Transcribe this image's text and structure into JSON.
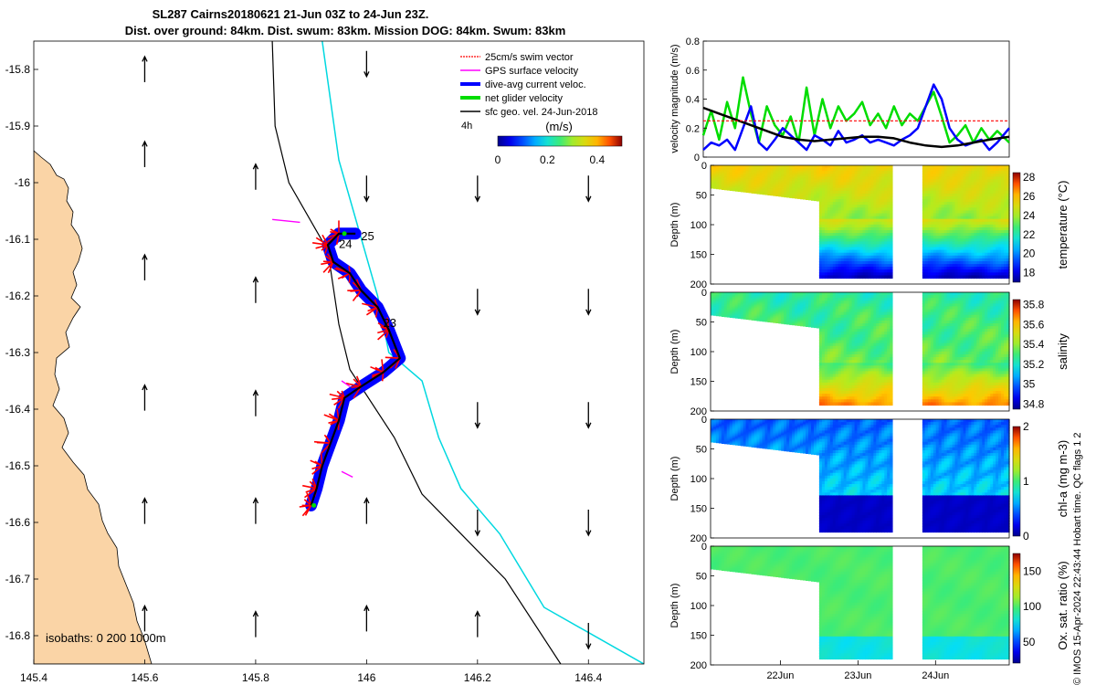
{
  "title": {
    "line1": "SL287 Cairns20180621 21-Jun 03Z to 24-Jun 23Z.",
    "line2": "Dist. over ground: 84km. Dist. swum: 83km. Mission DOG: 84km. Swum: 83km"
  },
  "credit": "© IMOS 15-Apr-2024 22:43:44 Hobart time. QC flags 1  2",
  "colors": {
    "land": "#fad4a6",
    "swim_vector": "#ff0000",
    "gps_velocity": "#ff00ff",
    "dive_avg": "#0000ff",
    "net_velocity": "#00dd00",
    "sfc_geo": "#000000",
    "isobath_200": "#000000",
    "isobath_1000": "#00d8e0"
  },
  "chart_data": [
    {
      "type": "map",
      "xlim": [
        145.4,
        146.5
      ],
      "ylim": [
        -16.85,
        -15.75
      ],
      "xticks": [
        145.4,
        145.6,
        145.8,
        146,
        146.2,
        146.4
      ],
      "xtick_labels": [
        "145.4",
        "145.6",
        "145.8",
        "146",
        "146.2",
        "146.4"
      ],
      "yticks": [
        -15.8,
        -15.9,
        -16,
        -16.1,
        -16.2,
        -16.3,
        -16.4,
        -16.5,
        -16.6,
        -16.7,
        -16.8
      ],
      "ytick_labels": [
        "-15.8",
        "-15.9",
        "-16",
        "-16.1",
        "-16.2",
        "-16.3",
        "-16.4",
        "-16.5",
        "-16.6",
        "-16.7",
        "-16.8"
      ],
      "legend": [
        "25cm/s swim vector",
        "GPS surface velocity",
        "dive-avg current veloc.",
        "net glider velocity",
        "sfc geo. vel. 24-Jun-2018"
      ],
      "legend_scale_label": "4h",
      "colorbar": {
        "label": "(m/s)",
        "ticks": [
          "0",
          "0.2",
          "0.4"
        ],
        "range": [
          0,
          0.5
        ]
      },
      "isobath_label": "isobaths: 0   200  1000m",
      "day_labels": [
        {
          "text": "24",
          "lon": 145.95,
          "lat": -16.115
        },
        {
          "text": "25",
          "lon": 145.99,
          "lat": -16.102
        },
        {
          "text": "23",
          "lon": 146.03,
          "lat": -16.255
        }
      ],
      "track": [
        {
          "lon": 145.9,
          "lat": -16.57
        },
        {
          "lon": 145.91,
          "lat": -16.54
        },
        {
          "lon": 145.92,
          "lat": -16.5
        },
        {
          "lon": 145.935,
          "lat": -16.46
        },
        {
          "lon": 145.95,
          "lat": -16.42
        },
        {
          "lon": 145.96,
          "lat": -16.38
        },
        {
          "lon": 145.99,
          "lat": -16.36
        },
        {
          "lon": 146.03,
          "lat": -16.335
        },
        {
          "lon": 146.06,
          "lat": -16.31
        },
        {
          "lon": 146.04,
          "lat": -16.26
        },
        {
          "lon": 146.02,
          "lat": -16.22
        },
        {
          "lon": 145.99,
          "lat": -16.19
        },
        {
          "lon": 145.97,
          "lat": -16.16
        },
        {
          "lon": 145.94,
          "lat": -16.14
        },
        {
          "lon": 145.93,
          "lat": -16.11
        },
        {
          "lon": 145.95,
          "lat": -16.09
        },
        {
          "lon": 145.98,
          "lat": -16.09
        }
      ],
      "sfc_geo_arrows": [
        {
          "lon": 145.6,
          "lat": -15.8,
          "u": 0,
          "v": 1
        },
        {
          "lon": 145.6,
          "lat": -15.95,
          "u": 0,
          "v": 1
        },
        {
          "lon": 145.6,
          "lat": -16.15,
          "u": 0,
          "v": 1
        },
        {
          "lon": 145.6,
          "lat": -16.38,
          "u": 0,
          "v": 1
        },
        {
          "lon": 145.6,
          "lat": -16.58,
          "u": 0,
          "v": 1
        },
        {
          "lon": 145.6,
          "lat": -16.77,
          "u": 0,
          "v": 1
        },
        {
          "lon": 145.8,
          "lat": -15.99,
          "u": 0,
          "v": 1
        },
        {
          "lon": 145.8,
          "lat": -16.19,
          "u": 0,
          "v": 1
        },
        {
          "lon": 145.8,
          "lat": -16.39,
          "u": 0,
          "v": 1
        },
        {
          "lon": 145.8,
          "lat": -16.58,
          "u": 0,
          "v": 1
        },
        {
          "lon": 145.8,
          "lat": -16.78,
          "u": 0,
          "v": 1
        },
        {
          "lon": 146.0,
          "lat": -15.79,
          "u": 0,
          "v": -1
        },
        {
          "lon": 146.0,
          "lat": -16.01,
          "u": 0,
          "v": -1
        },
        {
          "lon": 146.0,
          "lat": -16.58,
          "u": 0,
          "v": 1
        },
        {
          "lon": 146.0,
          "lat": -16.77,
          "u": 0,
          "v": 1
        },
        {
          "lon": 146.2,
          "lat": -16.01,
          "u": 0,
          "v": -1
        },
        {
          "lon": 146.2,
          "lat": -16.21,
          "u": 0,
          "v": -1
        },
        {
          "lon": 146.2,
          "lat": -16.41,
          "u": 0,
          "v": -1
        },
        {
          "lon": 146.2,
          "lat": -16.6,
          "u": 0,
          "v": -1
        },
        {
          "lon": 146.2,
          "lat": -16.78,
          "u": 0,
          "v": 1
        },
        {
          "lon": 146.4,
          "lat": -16.01,
          "u": 0,
          "v": -1
        },
        {
          "lon": 146.4,
          "lat": -16.21,
          "u": 0,
          "v": -1
        },
        {
          "lon": 146.4,
          "lat": -16.41,
          "u": 0,
          "v": -1
        },
        {
          "lon": 146.4,
          "lat": -16.6,
          "u": 0,
          "v": -1
        },
        {
          "lon": 146.4,
          "lat": -16.8,
          "u": 0,
          "v": -1
        }
      ],
      "isobath_200_path": [
        {
          "lon": 145.83,
          "lat": -15.75
        },
        {
          "lon": 145.835,
          "lat": -15.9
        },
        {
          "lon": 145.86,
          "lat": -16.0
        },
        {
          "lon": 145.93,
          "lat": -16.12
        },
        {
          "lon": 145.95,
          "lat": -16.25
        },
        {
          "lon": 145.97,
          "lat": -16.33
        },
        {
          "lon": 146.05,
          "lat": -16.45
        },
        {
          "lon": 146.1,
          "lat": -16.55
        },
        {
          "lon": 146.25,
          "lat": -16.7
        },
        {
          "lon": 146.35,
          "lat": -16.85
        }
      ],
      "isobath_1000_path": [
        {
          "lon": 145.92,
          "lat": -15.75
        },
        {
          "lon": 145.95,
          "lat": -15.96
        },
        {
          "lon": 146.02,
          "lat": -16.2
        },
        {
          "lon": 146.04,
          "lat": -16.3
        },
        {
          "lon": 146.1,
          "lat": -16.35
        },
        {
          "lon": 146.13,
          "lat": -16.45
        },
        {
          "lon": 146.17,
          "lat": -16.54
        },
        {
          "lon": 146.24,
          "lat": -16.62
        },
        {
          "lon": 146.32,
          "lat": -16.75
        },
        {
          "lon": 146.5,
          "lat": -16.85
        }
      ]
    },
    {
      "type": "line",
      "ylabel": "velocity magnitude (m/s)",
      "ylim": [
        0,
        0.8
      ],
      "yticks": [
        0,
        0.2,
        0.4,
        0.6,
        0.8
      ],
      "ytick_labels": [
        "0",
        "0.2",
        "0.4",
        "0.6",
        "0.8"
      ],
      "x_days": [
        21.1,
        24.95
      ],
      "series": [
        {
          "name": "net glider velocity",
          "color": "#00dd00",
          "x": [
            21.1,
            21.2,
            21.3,
            21.4,
            21.5,
            21.6,
            21.7,
            21.8,
            21.9,
            22.0,
            22.1,
            22.2,
            22.3,
            22.4,
            22.5,
            22.6,
            22.7,
            22.8,
            22.9,
            23.0,
            23.1,
            23.2,
            23.3,
            23.4,
            23.5,
            23.6,
            23.7,
            23.8,
            23.9,
            24.0,
            24.1,
            24.2,
            24.3,
            24.4,
            24.5,
            24.6,
            24.7,
            24.8,
            24.95
          ],
          "y": [
            0.15,
            0.32,
            0.12,
            0.38,
            0.2,
            0.55,
            0.3,
            0.1,
            0.35,
            0.22,
            0.15,
            0.28,
            0.1,
            0.48,
            0.15,
            0.4,
            0.2,
            0.35,
            0.25,
            0.3,
            0.38,
            0.22,
            0.3,
            0.2,
            0.35,
            0.22,
            0.3,
            0.25,
            0.35,
            0.45,
            0.28,
            0.1,
            0.15,
            0.22,
            0.1,
            0.2,
            0.12,
            0.18,
            0.1
          ]
        },
        {
          "name": "dive-avg current veloc.",
          "color": "#0000ff",
          "x": [
            21.1,
            21.2,
            21.3,
            21.4,
            21.5,
            21.6,
            21.7,
            21.8,
            21.9,
            22.0,
            22.1,
            22.2,
            22.3,
            22.4,
            22.5,
            22.6,
            22.7,
            22.8,
            22.9,
            23.0,
            23.1,
            23.2,
            23.3,
            23.4,
            23.5,
            23.6,
            23.7,
            23.8,
            23.9,
            24.0,
            24.1,
            24.2,
            24.3,
            24.4,
            24.5,
            24.6,
            24.7,
            24.8,
            24.95
          ],
          "y": [
            0.05,
            0.1,
            0.08,
            0.12,
            0.05,
            0.2,
            0.35,
            0.1,
            0.05,
            0.12,
            0.2,
            0.15,
            0.1,
            0.05,
            0.15,
            0.12,
            0.08,
            0.18,
            0.1,
            0.12,
            0.15,
            0.1,
            0.12,
            0.1,
            0.08,
            0.12,
            0.15,
            0.2,
            0.35,
            0.5,
            0.4,
            0.2,
            0.12,
            0.08,
            0.1,
            0.12,
            0.05,
            0.1,
            0.2
          ]
        },
        {
          "name": "sfc geo. vel.",
          "color": "#000000",
          "x": [
            21.1,
            21.3,
            21.5,
            21.7,
            21.9,
            22.1,
            22.3,
            22.5,
            22.7,
            22.9,
            23.1,
            23.3,
            23.5,
            23.7,
            23.9,
            24.1,
            24.3,
            24.5,
            24.7,
            24.95
          ],
          "y": [
            0.34,
            0.3,
            0.26,
            0.22,
            0.18,
            0.14,
            0.12,
            0.11,
            0.12,
            0.13,
            0.14,
            0.14,
            0.13,
            0.1,
            0.08,
            0.07,
            0.08,
            0.1,
            0.12,
            0.14
          ]
        },
        {
          "name": "swim vector",
          "color": "#ff0000",
          "x": [
            21.1,
            24.95
          ],
          "y": [
            0.25,
            0.25
          ]
        }
      ]
    },
    {
      "type": "heatmap",
      "variable": "temperature",
      "ylabel": "Depth (m)",
      "cbar_label": "temperature (°C)",
      "clim": [
        17,
        28.5
      ],
      "cbar_ticks": [
        18,
        20,
        22,
        24,
        26,
        28
      ],
      "cbar_tick_labels": [
        "18",
        "20",
        "22",
        "24",
        "26",
        "28"
      ],
      "yticks": [
        0,
        50,
        100,
        150,
        200
      ],
      "ytick_labels": [
        "0",
        "50",
        "100",
        "150",
        "200"
      ]
    },
    {
      "type": "heatmap",
      "variable": "salinity",
      "ylabel": "Depth (m)",
      "cbar_label": "salinity",
      "clim": [
        34.75,
        35.85
      ],
      "cbar_ticks": [
        34.8,
        35,
        35.2,
        35.4,
        35.6,
        35.8
      ],
      "cbar_tick_labels": [
        "34.8",
        "35",
        "35.2",
        "35.4",
        "35.6",
        "35.8"
      ],
      "yticks": [
        0,
        50,
        100,
        150,
        200
      ],
      "ytick_labels": [
        "0",
        "50",
        "100",
        "150",
        "200"
      ]
    },
    {
      "type": "heatmap",
      "variable": "chl-a",
      "ylabel": "Depth (m)",
      "cbar_label": "chl-a (mg m-3)",
      "clim": [
        0,
        2
      ],
      "cbar_ticks": [
        0,
        1,
        2
      ],
      "cbar_tick_labels": [
        "0",
        "1",
        "2"
      ],
      "yticks": [
        0,
        50,
        100,
        150,
        200
      ],
      "ytick_labels": [
        "0",
        "50",
        "100",
        "150",
        "200"
      ]
    },
    {
      "type": "heatmap",
      "variable": "oxygen",
      "ylabel": "Depth (m)",
      "cbar_label": "Ox. sat. ratio (%)",
      "clim": [
        20,
        175
      ],
      "cbar_ticks": [
        50,
        100,
        150
      ],
      "cbar_tick_labels": [
        "50",
        "100",
        "150"
      ],
      "yticks": [
        0,
        50,
        100,
        150,
        200
      ],
      "ytick_labels": [
        "0",
        "50",
        "100",
        "150",
        "200"
      ],
      "xticks_days": [
        22,
        23,
        24
      ],
      "xtick_labels": [
        "22Jun",
        "23Jun",
        "24Jun"
      ]
    }
  ]
}
